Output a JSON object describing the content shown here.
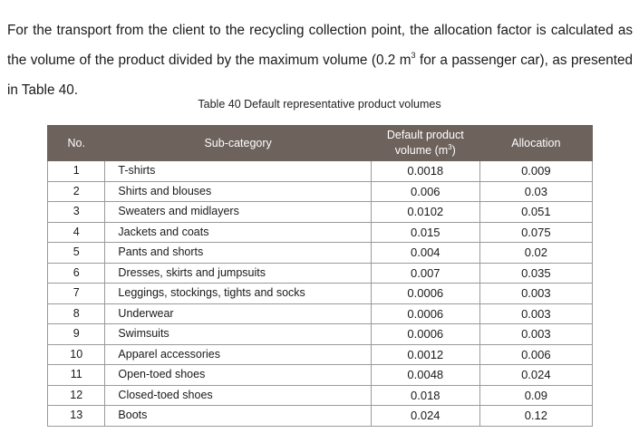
{
  "paragraph": {
    "part1": "For the transport from the client to the recycling collection point, the allocation factor is calculated as the volume of the product divided by the maximum volume (0.2 m",
    "sup": "3",
    "part2": " for a passenger car), as presented in Table 40."
  },
  "caption": "Table 40 Default representative product volumes",
  "table": {
    "headers": {
      "no": "No.",
      "sub_category": "Sub-category",
      "volume_line1": "Default product",
      "volume_line2_pre": "volume (m",
      "volume_sup": "3",
      "volume_line2_post": ")",
      "allocation": "Allocation"
    },
    "rows": [
      {
        "no": "1",
        "sub": "T-shirts",
        "vol": "0.0018",
        "alloc": "0.009"
      },
      {
        "no": "2",
        "sub": "Shirts and blouses",
        "vol": "0.006",
        "alloc": "0.03"
      },
      {
        "no": "3",
        "sub": "Sweaters and midlayers",
        "vol": "0.0102",
        "alloc": "0.051"
      },
      {
        "no": "4",
        "sub": "Jackets and coats",
        "vol": "0.015",
        "alloc": "0.075"
      },
      {
        "no": "5",
        "sub": "Pants and shorts",
        "vol": "0.004",
        "alloc": "0.02"
      },
      {
        "no": "6",
        "sub": "Dresses, skirts and jumpsuits",
        "vol": "0.007",
        "alloc": "0.035"
      },
      {
        "no": "7",
        "sub": "Leggings, stockings, tights and socks",
        "vol": "0.0006",
        "alloc": "0.003"
      },
      {
        "no": "8",
        "sub": "Underwear",
        "vol": "0.0006",
        "alloc": "0.003"
      },
      {
        "no": "9",
        "sub": "Swimsuits",
        "vol": "0.0006",
        "alloc": "0.003"
      },
      {
        "no": "10",
        "sub": "Apparel accessories",
        "vol": "0.0012",
        "alloc": "0.006"
      },
      {
        "no": "11",
        "sub": "Open-toed shoes",
        "vol": "0.0048",
        "alloc": "0.024"
      },
      {
        "no": "12",
        "sub": "Closed-toed shoes",
        "vol": "0.018",
        "alloc": "0.09"
      },
      {
        "no": "13",
        "sub": "Boots",
        "vol": "0.024",
        "alloc": "0.12"
      }
    ]
  }
}
